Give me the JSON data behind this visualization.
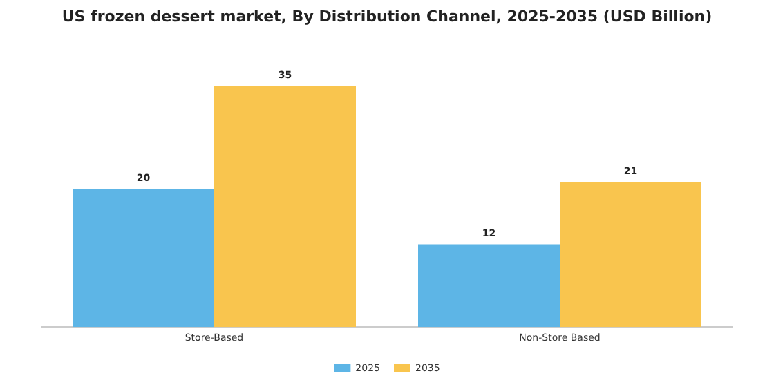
{
  "chart_data": {
    "type": "bar",
    "title": "US frozen dessert market, By Distribution Channel, 2025-2035 (USD Billion)",
    "categories": [
      "Store-Based",
      "Non-Store Based"
    ],
    "series": [
      {
        "name": "2025",
        "color": "#5db5e6",
        "values": [
          20,
          12
        ]
      },
      {
        "name": "2035",
        "color": "#f9c54e",
        "values": [
          35,
          21
        ]
      }
    ],
    "data_labels": true,
    "grid": false,
    "legend": "bottom"
  }
}
